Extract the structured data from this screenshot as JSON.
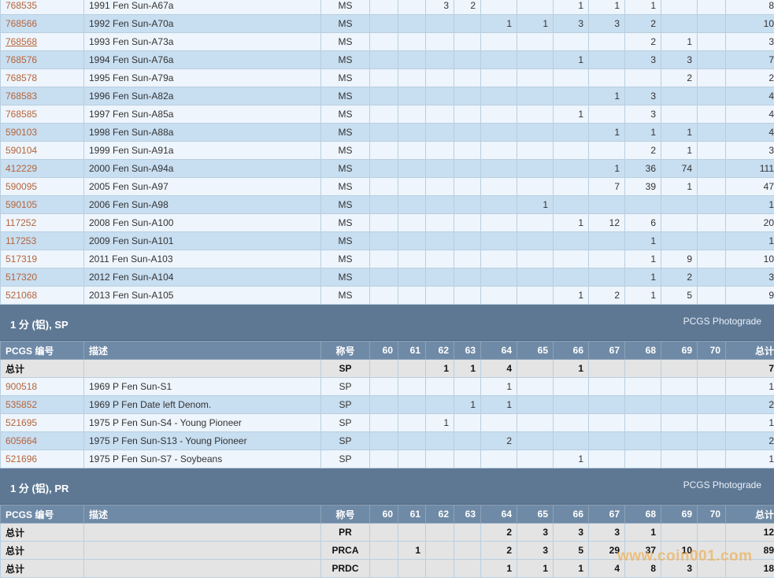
{
  "columns": {
    "code": "PCGS 编号",
    "desc": "描述",
    "name": "称号",
    "grades": [
      "60",
      "61",
      "62",
      "63",
      "64",
      "65",
      "66",
      "67",
      "68",
      "69",
      "70"
    ],
    "total": "总计"
  },
  "ms_rows": [
    {
      "code": "768535",
      "desc": "1991 Fen Sun-A67a",
      "name": "MS",
      "vals": [
        "",
        "",
        "3",
        "2",
        "",
        "",
        "1",
        "1",
        "1",
        "",
        ""
      ],
      "total": "8"
    },
    {
      "code": "768566",
      "desc": "1992 Fen Sun-A70a",
      "name": "MS",
      "vals": [
        "",
        "",
        "",
        "",
        "1",
        "1",
        "3",
        "3",
        "2",
        "",
        ""
      ],
      "total": "10"
    },
    {
      "code": "768568",
      "desc": "1993 Fen Sun-A73a",
      "name": "MS",
      "vals": [
        "",
        "",
        "",
        "",
        "",
        "",
        "",
        "",
        "2",
        "1",
        ""
      ],
      "total": "3"
    },
    {
      "code": "768576",
      "desc": "1994 Fen Sun-A76a",
      "name": "MS",
      "vals": [
        "",
        "",
        "",
        "",
        "",
        "",
        "1",
        "",
        "3",
        "3",
        ""
      ],
      "total": "7"
    },
    {
      "code": "768578",
      "desc": "1995 Fen Sun-A79a",
      "name": "MS",
      "vals": [
        "",
        "",
        "",
        "",
        "",
        "",
        "",
        "",
        "",
        "2",
        ""
      ],
      "total": "2"
    },
    {
      "code": "768583",
      "desc": "1996 Fen Sun-A82a",
      "name": "MS",
      "vals": [
        "",
        "",
        "",
        "",
        "",
        "",
        "",
        "1",
        "3",
        "",
        ""
      ],
      "total": "4"
    },
    {
      "code": "768585",
      "desc": "1997 Fen Sun-A85a",
      "name": "MS",
      "vals": [
        "",
        "",
        "",
        "",
        "",
        "",
        "1",
        "",
        "3",
        "",
        ""
      ],
      "total": "4"
    },
    {
      "code": "590103",
      "desc": "1998 Fen Sun-A88a",
      "name": "MS",
      "vals": [
        "",
        "",
        "",
        "",
        "",
        "",
        "",
        "1",
        "1",
        "1",
        ""
      ],
      "total": "4"
    },
    {
      "code": "590104",
      "desc": "1999 Fen Sun-A91a",
      "name": "MS",
      "vals": [
        "",
        "",
        "",
        "",
        "",
        "",
        "",
        "",
        "2",
        "1",
        ""
      ],
      "total": "3"
    },
    {
      "code": "412229",
      "desc": "2000 Fen Sun-A94a",
      "name": "MS",
      "vals": [
        "",
        "",
        "",
        "",
        "",
        "",
        "",
        "1",
        "36",
        "74",
        ""
      ],
      "total": "111"
    },
    {
      "code": "590095",
      "desc": "2005 Fen Sun-A97",
      "name": "MS",
      "vals": [
        "",
        "",
        "",
        "",
        "",
        "",
        "",
        "7",
        "39",
        "1",
        ""
      ],
      "total": "47"
    },
    {
      "code": "590105",
      "desc": "2006 Fen Sun-A98",
      "name": "MS",
      "vals": [
        "",
        "",
        "",
        "",
        "",
        "1",
        "",
        "",
        "",
        "",
        ""
      ],
      "total": "1"
    },
    {
      "code": "117252",
      "desc": "2008 Fen Sun-A100",
      "name": "MS",
      "vals": [
        "",
        "",
        "",
        "",
        "",
        "",
        "1",
        "12",
        "6",
        "",
        ""
      ],
      "total": "20"
    },
    {
      "code": "117253",
      "desc": "2009 Fen Sun-A101",
      "name": "MS",
      "vals": [
        "",
        "",
        "",
        "",
        "",
        "",
        "",
        "",
        "1",
        "",
        ""
      ],
      "total": "1"
    },
    {
      "code": "517319",
      "desc": "2011 Fen Sun-A103",
      "name": "MS",
      "vals": [
        "",
        "",
        "",
        "",
        "",
        "",
        "",
        "",
        "1",
        "9",
        ""
      ],
      "total": "10"
    },
    {
      "code": "517320",
      "desc": "2012 Fen Sun-A104",
      "name": "MS",
      "vals": [
        "",
        "",
        "",
        "",
        "",
        "",
        "",
        "",
        "1",
        "2",
        ""
      ],
      "total": "3"
    },
    {
      "code": "521068",
      "desc": "2013 Fen Sun-A105",
      "name": "MS",
      "vals": [
        "",
        "",
        "",
        "",
        "",
        "",
        "1",
        "2",
        "1",
        "5",
        ""
      ],
      "total": "9"
    }
  ],
  "sp_section": {
    "title": "1 分 (铝), SP",
    "photograde": "PCGS Photograde"
  },
  "sp_total": {
    "label": "总计",
    "name": "SP",
    "vals": [
      "",
      "",
      "1",
      "1",
      "4",
      "",
      "1",
      "",
      "",
      "",
      ""
    ],
    "total": "7"
  },
  "sp_rows": [
    {
      "code": "900518",
      "desc": "1969 P Fen Sun-S1",
      "name": "SP",
      "vals": [
        "",
        "",
        "",
        "",
        "1",
        "",
        "",
        "",
        "",
        "",
        ""
      ],
      "total": "1"
    },
    {
      "code": "535852",
      "desc": "1969 P Fen Date left Denom.",
      "name": "SP",
      "vals": [
        "",
        "",
        "",
        "1",
        "1",
        "",
        "",
        "",
        "",
        "",
        ""
      ],
      "total": "2"
    },
    {
      "code": "521695",
      "desc": "1975 P Fen Sun-S4 - Young Pioneer",
      "name": "SP",
      "vals": [
        "",
        "",
        "1",
        "",
        "",
        "",
        "",
        "",
        "",
        "",
        ""
      ],
      "total": "1"
    },
    {
      "code": "605664",
      "desc": "1975 P Fen Sun-S13 - Young Pioneer",
      "name": "SP",
      "vals": [
        "",
        "",
        "",
        "",
        "2",
        "",
        "",
        "",
        "",
        "",
        ""
      ],
      "total": "2"
    },
    {
      "code": "521696",
      "desc": "1975 P Fen Sun-S7 - Soybeans",
      "name": "SP",
      "vals": [
        "",
        "",
        "",
        "",
        "",
        "",
        "1",
        "",
        "",
        "",
        ""
      ],
      "total": "1"
    }
  ],
  "pr_section": {
    "title": "1 分 (铝), PR",
    "photograde": "PCGS Photograde"
  },
  "pr_totals": [
    {
      "label": "总计",
      "name": "PR",
      "vals": [
        "",
        "",
        "",
        "",
        "2",
        "3",
        "3",
        "3",
        "1",
        "",
        ""
      ],
      "total": "12"
    },
    {
      "label": "总计",
      "name": "PRCA",
      "vals": [
        "",
        "1",
        "",
        "",
        "2",
        "3",
        "5",
        "29",
        "37",
        "10",
        ""
      ],
      "total": "89"
    },
    {
      "label": "总计",
      "name": "PRDC",
      "vals": [
        "",
        "",
        "",
        "",
        "1",
        "1",
        "1",
        "4",
        "8",
        "3",
        ""
      ],
      "total": "18"
    }
  ],
  "watermark": "www.coin001.com"
}
